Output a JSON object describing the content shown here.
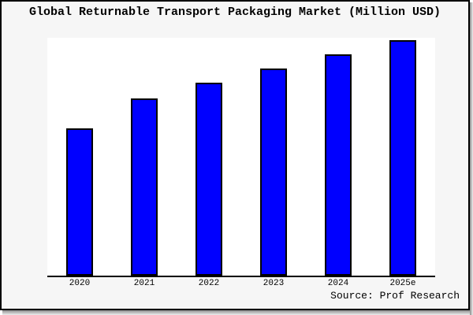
{
  "title": "Global Returnable Transport Packaging Market (Million USD)",
  "source": "Source: Prof Research",
  "colors": {
    "figure_bg": "#F6F6F6",
    "plot_bg": "#FFFFFF",
    "bar_fill": "#0000FF",
    "bar_edge": "#000000",
    "frame_border": "#000000",
    "text": "#000000"
  },
  "chart_data": {
    "type": "bar",
    "title": "Global Returnable Transport Packaging Market (Million USD)",
    "categories": [
      "2020",
      "2021",
      "2022",
      "2023",
      "2024",
      "2025e"
    ],
    "values": [
      62.5,
      75.3,
      82.0,
      88.0,
      94.0,
      100.0
    ],
    "values_unit": "relative index; no y-axis labels shown in image, 2025e bar = 100",
    "xlabel": "",
    "ylabel": "",
    "ylim": [
      0,
      101
    ],
    "grid": false,
    "legend": "none",
    "y_axis_shown": false,
    "annotations": [
      "Source: Prof Research"
    ]
  }
}
